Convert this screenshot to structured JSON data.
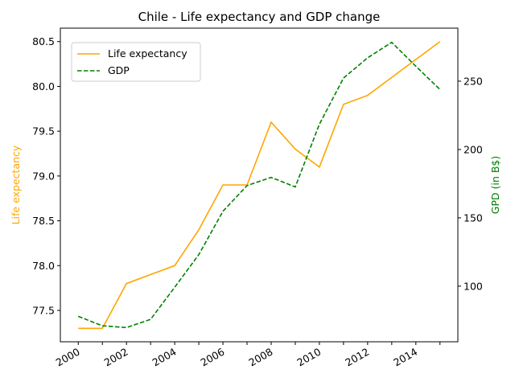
{
  "chart_data": {
    "type": "line",
    "title": "Chile - Life expectancy and GDP change",
    "x": [
      2000,
      2001,
      2002,
      2003,
      2004,
      2005,
      2006,
      2007,
      2008,
      2009,
      2010,
      2011,
      2012,
      2013,
      2014,
      2015
    ],
    "x_ticks": [
      "2000",
      "2002",
      "2004",
      "2006",
      "2008",
      "2010",
      "2012",
      "2014"
    ],
    "series": [
      {
        "name": "Life expectancy",
        "axis": "left",
        "color": "#FFA500",
        "style": "solid",
        "values": [
          77.3,
          77.3,
          77.8,
          77.9,
          78.0,
          78.4,
          78.9,
          78.9,
          79.6,
          79.3,
          79.1,
          79.8,
          79.9,
          80.1,
          80.3,
          80.5
        ]
      },
      {
        "name": "GDP",
        "axis": "right",
        "color": "#008000",
        "style": "dashed",
        "values": [
          77.9,
          71.0,
          69.7,
          75.7,
          99.2,
          123.1,
          154.8,
          173.6,
          179.6,
          172.6,
          218.5,
          252.3,
          267.1,
          278.4,
          260.9,
          243.9
        ]
      }
    ],
    "ylabel_left": "Life expectancy",
    "ylabel_right": "GPD (in B$)",
    "ylim_left": [
      77.15,
      80.65
    ],
    "yticks_left": [
      "77.5",
      "78.0",
      "78.5",
      "79.0",
      "79.5",
      "80.0",
      "80.5"
    ],
    "ylim_right": [
      59.3,
      288.8
    ],
    "yticks_right": [
      "100",
      "150",
      "200",
      "250"
    ],
    "legend_position": "top-left",
    "grid": false
  }
}
